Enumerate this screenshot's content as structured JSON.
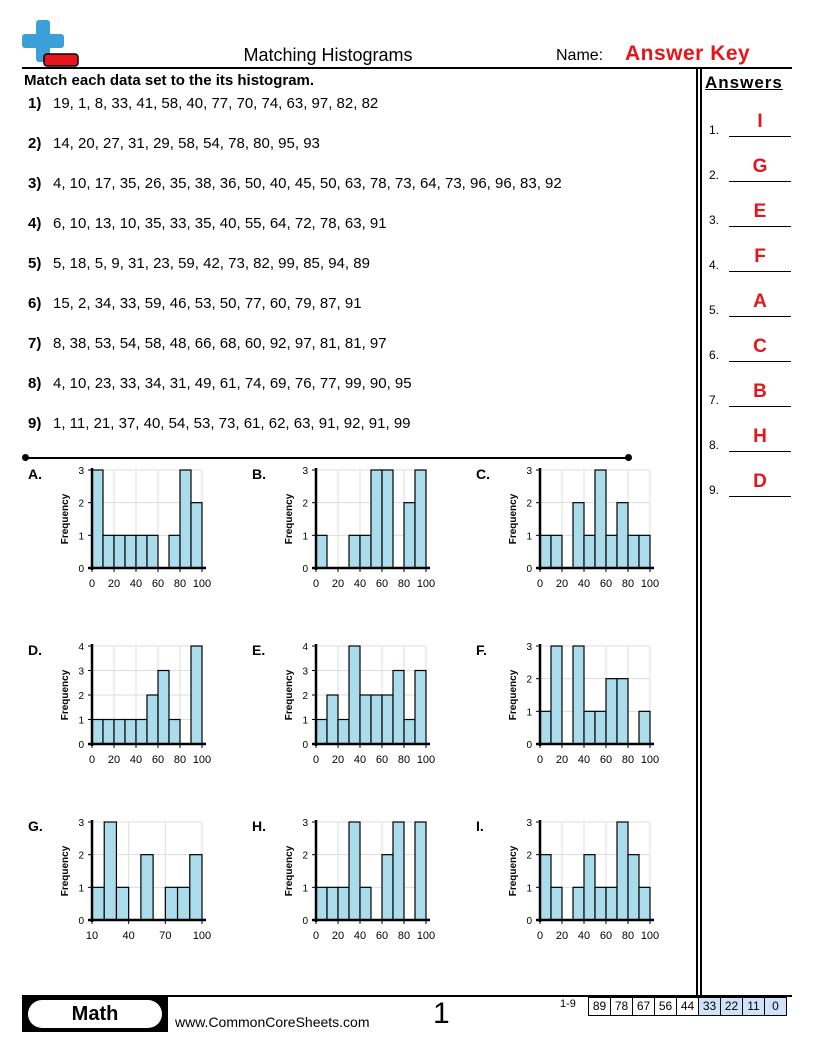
{
  "header": {
    "title": "Matching Histograms",
    "name_label": "Name:",
    "name_value": "Answer Key",
    "logo": "plus-minus-logo"
  },
  "instructions": "Match each data set to the its histogram.",
  "problems": [
    {
      "num": "1)",
      "data": "19, 1, 8, 33, 41, 58, 40, 77, 70, 74, 63, 97, 82, 82"
    },
    {
      "num": "2)",
      "data": "14, 20, 27, 31, 29, 58, 54, 78, 80, 95, 93"
    },
    {
      "num": "3)",
      "data": "4, 10, 17, 35, 26, 35, 38, 36, 50, 40, 45, 50, 63, 78, 73, 64, 73, 96, 96, 83, 92"
    },
    {
      "num": "4)",
      "data": "6, 10, 13, 10, 35, 33, 35, 40, 55, 64, 72, 78, 63, 91"
    },
    {
      "num": "5)",
      "data": "5, 18, 5, 9, 31, 23, 59, 42, 73, 82, 99, 85, 94, 89"
    },
    {
      "num": "6)",
      "data": "15, 2, 34, 33, 59, 46, 53, 50, 77, 60, 79, 87, 91"
    },
    {
      "num": "7)",
      "data": "8, 38, 53, 54, 58, 48, 66, 68, 60, 92, 97, 81, 81, 97"
    },
    {
      "num": "8)",
      "data": "4, 10, 23, 33, 34, 31, 49, 61, 74, 69, 76, 77, 99, 90, 95"
    },
    {
      "num": "9)",
      "data": "1, 11, 21, 37, 40, 54, 53, 73, 61, 62, 63, 91, 92, 91, 99"
    }
  ],
  "answers": {
    "title": "Answers",
    "items": [
      {
        "num": "1.",
        "value": "I"
      },
      {
        "num": "2.",
        "value": "G"
      },
      {
        "num": "3.",
        "value": "E"
      },
      {
        "num": "4.",
        "value": "F"
      },
      {
        "num": "5.",
        "value": "A"
      },
      {
        "num": "6.",
        "value": "C"
      },
      {
        "num": "7.",
        "value": "B"
      },
      {
        "num": "8.",
        "value": "H"
      },
      {
        "num": "9.",
        "value": "D"
      }
    ]
  },
  "chart_data": [
    {
      "label": "A.",
      "type": "bar",
      "ylabel": "Frequency",
      "xmin": 0,
      "xmax": 100,
      "bin": 10,
      "xticks": [
        "0",
        "20",
        "40",
        "60",
        "80",
        "100"
      ],
      "ymax": 3,
      "values": [
        3,
        1,
        1,
        1,
        1,
        1,
        0,
        1,
        3,
        2
      ]
    },
    {
      "label": "B.",
      "type": "bar",
      "ylabel": "Frequency",
      "xmin": 0,
      "xmax": 100,
      "bin": 10,
      "xticks": [
        "0",
        "20",
        "40",
        "60",
        "80",
        "100"
      ],
      "ymax": 3,
      "values": [
        1,
        0,
        0,
        1,
        1,
        3,
        3,
        0,
        2,
        3
      ]
    },
    {
      "label": "C.",
      "type": "bar",
      "ylabel": "Frequency",
      "xmin": 0,
      "xmax": 100,
      "bin": 10,
      "xticks": [
        "0",
        "20",
        "40",
        "60",
        "80",
        "100"
      ],
      "ymax": 3,
      "values": [
        1,
        1,
        0,
        2,
        1,
        3,
        1,
        2,
        1,
        1
      ]
    },
    {
      "label": "D.",
      "type": "bar",
      "ylabel": "Frequency",
      "xmin": 0,
      "xmax": 100,
      "bin": 10,
      "xticks": [
        "0",
        "20",
        "40",
        "60",
        "80",
        "100"
      ],
      "ymax": 4,
      "values": [
        1,
        1,
        1,
        1,
        1,
        2,
        3,
        1,
        0,
        4
      ]
    },
    {
      "label": "E.",
      "type": "bar",
      "ylabel": "Frequency",
      "xmin": 0,
      "xmax": 100,
      "bin": 10,
      "xticks": [
        "0",
        "20",
        "40",
        "60",
        "80",
        "100"
      ],
      "ymax": 4,
      "values": [
        1,
        2,
        1,
        4,
        2,
        2,
        2,
        3,
        1,
        3
      ]
    },
    {
      "label": "F.",
      "type": "bar",
      "ylabel": "Frequency",
      "xmin": 0,
      "xmax": 100,
      "bin": 10,
      "xticks": [
        "0",
        "20",
        "40",
        "60",
        "80",
        "100"
      ],
      "ymax": 3,
      "values": [
        1,
        3,
        0,
        3,
        1,
        1,
        2,
        2,
        0,
        1
      ]
    },
    {
      "label": "G.",
      "type": "bar",
      "ylabel": "Frequency",
      "xmin": 10,
      "xmax": 100,
      "bin": 10,
      "xticks": [
        "10",
        "40",
        "70",
        "100"
      ],
      "ymax": 3,
      "values": [
        1,
        3,
        1,
        0,
        2,
        0,
        1,
        1,
        2
      ]
    },
    {
      "label": "H.",
      "type": "bar",
      "ylabel": "Frequency",
      "xmin": 0,
      "xmax": 100,
      "bin": 10,
      "xticks": [
        "0",
        "20",
        "40",
        "60",
        "80",
        "100"
      ],
      "ymax": 3,
      "values": [
        1,
        1,
        1,
        3,
        1,
        0,
        2,
        3,
        0,
        3
      ]
    },
    {
      "label": "I.",
      "type": "bar",
      "ylabel": "Frequency",
      "xmin": 0,
      "xmax": 100,
      "bin": 10,
      "xticks": [
        "0",
        "20",
        "40",
        "60",
        "80",
        "100"
      ],
      "ymax": 3,
      "values": [
        2,
        1,
        0,
        1,
        2,
        1,
        1,
        3,
        2,
        1
      ]
    }
  ],
  "colors": {
    "bar": "#aadcec",
    "accent": "#e8141b",
    "score_highlight": "#cfe2f7"
  },
  "footer": {
    "subject": "Math",
    "site": "www.CommonCoreSheets.com",
    "page": "1",
    "score_label": "1-9",
    "scores": [
      "89",
      "78",
      "67",
      "56",
      "44",
      "33",
      "22",
      "11",
      "0"
    ]
  }
}
